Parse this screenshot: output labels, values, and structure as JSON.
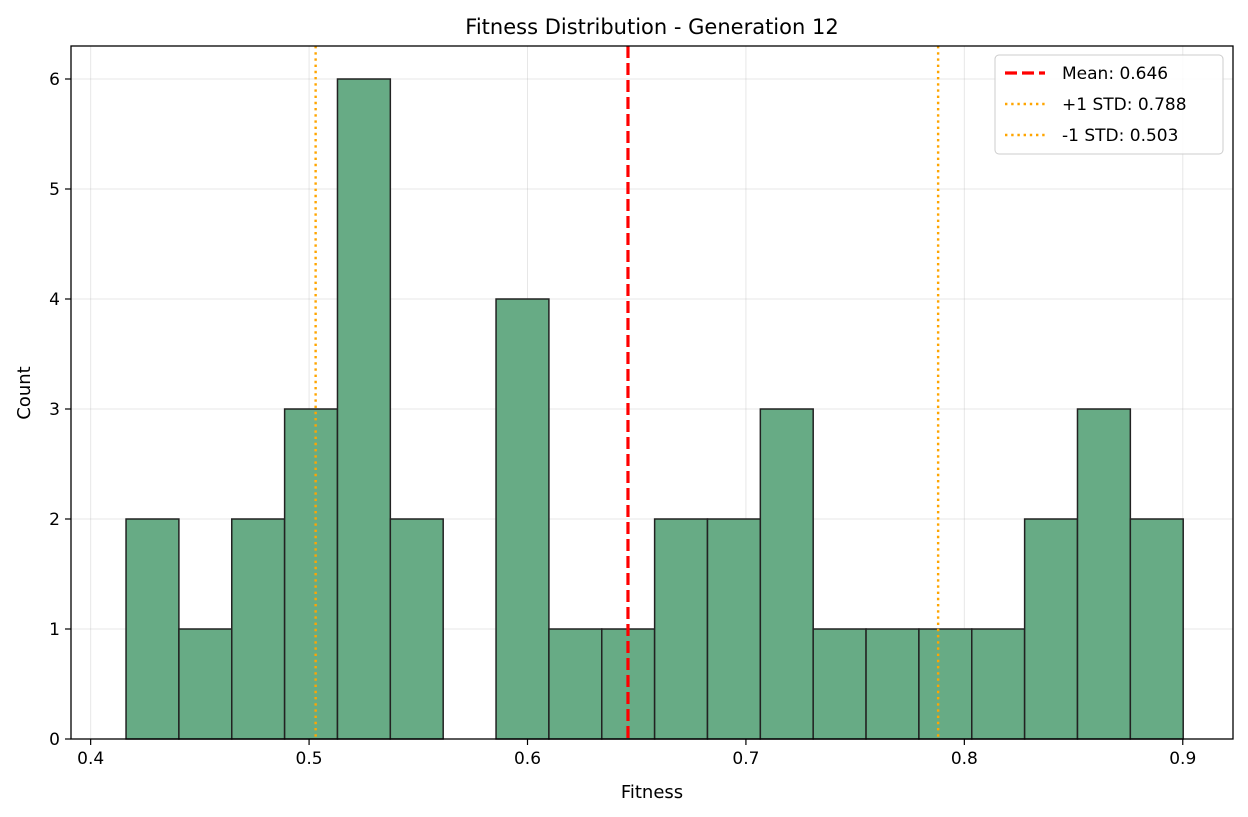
{
  "chart_data": {
    "type": "bar",
    "title": "Fitness Distribution - Generation 12",
    "xlabel": "Fitness",
    "ylabel": "Count",
    "xlim": [
      0.391,
      0.923
    ],
    "ylim": [
      0,
      6.3
    ],
    "grid": true,
    "legend_position": "top-right",
    "bar_color": "#67AB85",
    "bar_edge_color": "#222222",
    "x_ticks": [
      0.4,
      0.5,
      0.6,
      0.7,
      0.8,
      0.9
    ],
    "x_tick_labels": [
      "0.4",
      "0.5",
      "0.6",
      "0.7",
      "0.8",
      "0.9"
    ],
    "y_ticks": [
      0,
      1,
      2,
      3,
      4,
      5,
      6
    ],
    "y_tick_labels": [
      "0",
      "1",
      "2",
      "3",
      "4",
      "5",
      "6"
    ],
    "bin_edges": [
      0.4162,
      0.4404,
      0.4646,
      0.4888,
      0.513,
      0.5372,
      0.5614,
      0.5856,
      0.6098,
      0.634,
      0.6582,
      0.6824,
      0.7066,
      0.7308,
      0.755,
      0.7792,
      0.8034,
      0.8276,
      0.8518,
      0.876,
      0.9002
    ],
    "counts": [
      2,
      1,
      2,
      3,
      6,
      2,
      0,
      4,
      1,
      1,
      2,
      2,
      3,
      1,
      1,
      1,
      1,
      2,
      3,
      2
    ],
    "reference_lines": [
      {
        "name": "Mean: 0.646",
        "x": 0.646,
        "color": "#FF0000",
        "style": "dashed"
      },
      {
        "name": "+1 STD: 0.788",
        "x": 0.788,
        "color": "#FFA500",
        "style": "dotted"
      },
      {
        "name": "-1 STD: 0.503",
        "x": 0.503,
        "color": "#FFA500",
        "style": "dotted"
      }
    ]
  }
}
